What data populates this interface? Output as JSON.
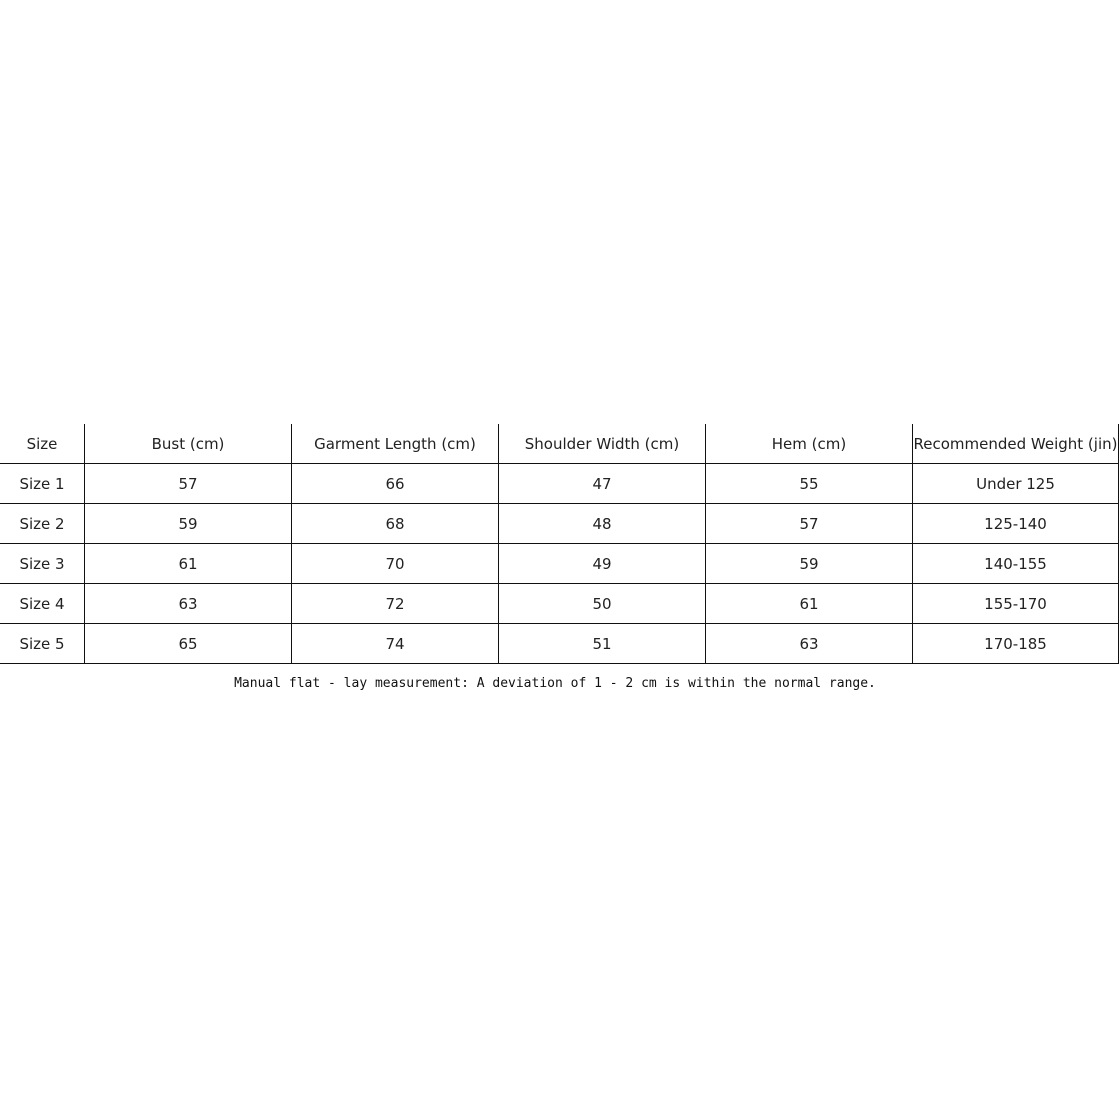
{
  "table": {
    "headers": [
      "Size",
      "Bust (cm)",
      "Garment Length (cm)",
      "Shoulder Width (cm)",
      "Hem (cm)",
      "Recommended Weight (jin)"
    ],
    "rows": [
      [
        "Size 1",
        "57",
        "66",
        "47",
        "55",
        "Under 125"
      ],
      [
        "Size 2",
        "59",
        "68",
        "48",
        "57",
        "125-140"
      ],
      [
        "Size 3",
        "61",
        "70",
        "49",
        "59",
        "140-155"
      ],
      [
        "Size 4",
        "63",
        "72",
        "50",
        "61",
        "155-170"
      ],
      [
        "Size 5",
        "65",
        "74",
        "51",
        "63",
        "170-185"
      ]
    ]
  },
  "note": "Manual flat - lay measurement: A deviation of 1 - 2 cm is within the normal range."
}
